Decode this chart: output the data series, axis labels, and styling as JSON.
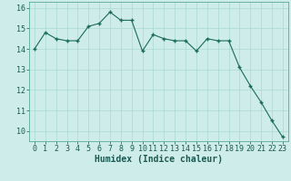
{
  "x": [
    0,
    1,
    2,
    3,
    4,
    5,
    6,
    7,
    8,
    9,
    10,
    11,
    12,
    13,
    14,
    15,
    16,
    17,
    18,
    19,
    20,
    21,
    22,
    23
  ],
  "y": [
    14.0,
    14.8,
    14.5,
    14.4,
    14.4,
    15.1,
    15.25,
    15.8,
    15.4,
    15.4,
    13.9,
    14.7,
    14.5,
    14.4,
    14.4,
    13.9,
    14.5,
    14.4,
    14.4,
    13.1,
    12.2,
    11.4,
    10.5,
    9.7
  ],
  "xlabel": "Humidex (Indice chaleur)",
  "ylim": [
    9.5,
    16.3
  ],
  "yticks": [
    10,
    11,
    12,
    13,
    14,
    15,
    16
  ],
  "xticks": [
    0,
    1,
    2,
    3,
    4,
    5,
    6,
    7,
    8,
    9,
    10,
    11,
    12,
    13,
    14,
    15,
    16,
    17,
    18,
    19,
    20,
    21,
    22,
    23
  ],
  "line_color": "#1a6b5a",
  "marker": "+",
  "marker_size": 3,
  "marker_edge_width": 1.0,
  "line_width": 0.8,
  "background_color": "#ceecea",
  "grid_color": "#a8d8d4",
  "tick_fontsize": 6,
  "xlabel_fontsize": 7,
  "xlim": [
    -0.5,
    23.5
  ]
}
